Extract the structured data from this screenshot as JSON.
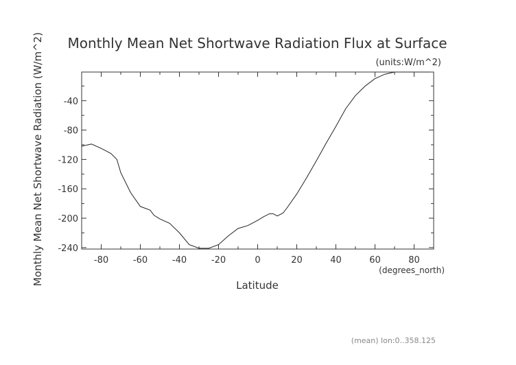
{
  "chart_data": {
    "type": "line",
    "title": "Monthly Mean Net Shortwave Radiation Flux at Surface",
    "units_note": "(units:W/m^2)",
    "ylabel": "Monthly Mean Net Shortwave Radiation (W/m^2)",
    "xlabel": "Latitude",
    "x_unit": "(degrees_north)",
    "footnote": "(mean) lon:0..358.125",
    "xlim": [
      -90,
      90
    ],
    "ylim": [
      -242,
      -1
    ],
    "x_ticks": [
      -80,
      -60,
      -40,
      -20,
      0,
      20,
      40,
      60,
      80
    ],
    "y_ticks": [
      -40,
      -80,
      -120,
      -160,
      -200,
      -240
    ],
    "grid": false,
    "series": [
      {
        "x": [
          -90,
          -85,
          -80,
          -75,
          -72,
          -70,
          -65,
          -60,
          -55,
          -53,
          -50,
          -45,
          -40,
          -35,
          -30,
          -25,
          -20,
          -15,
          -10,
          -5,
          0,
          3,
          6,
          8,
          10,
          13,
          15,
          20,
          25,
          30,
          35,
          40,
          45,
          50,
          55,
          60,
          65,
          70,
          75,
          80,
          85,
          88
        ],
        "y": [
          -102,
          -99,
          -105,
          -112,
          -120,
          -138,
          -165,
          -184,
          -189,
          -196,
          -201,
          -207,
          -220,
          -236,
          -241,
          -241,
          -236,
          -224,
          -214,
          -210,
          -203,
          -198,
          -194,
          -194,
          -197,
          -193,
          -186,
          -167,
          -145,
          -122,
          -98,
          -75,
          -51,
          -33,
          -20,
          -10,
          -4,
          -1,
          -1,
          -1,
          -1,
          -1
        ]
      }
    ]
  }
}
